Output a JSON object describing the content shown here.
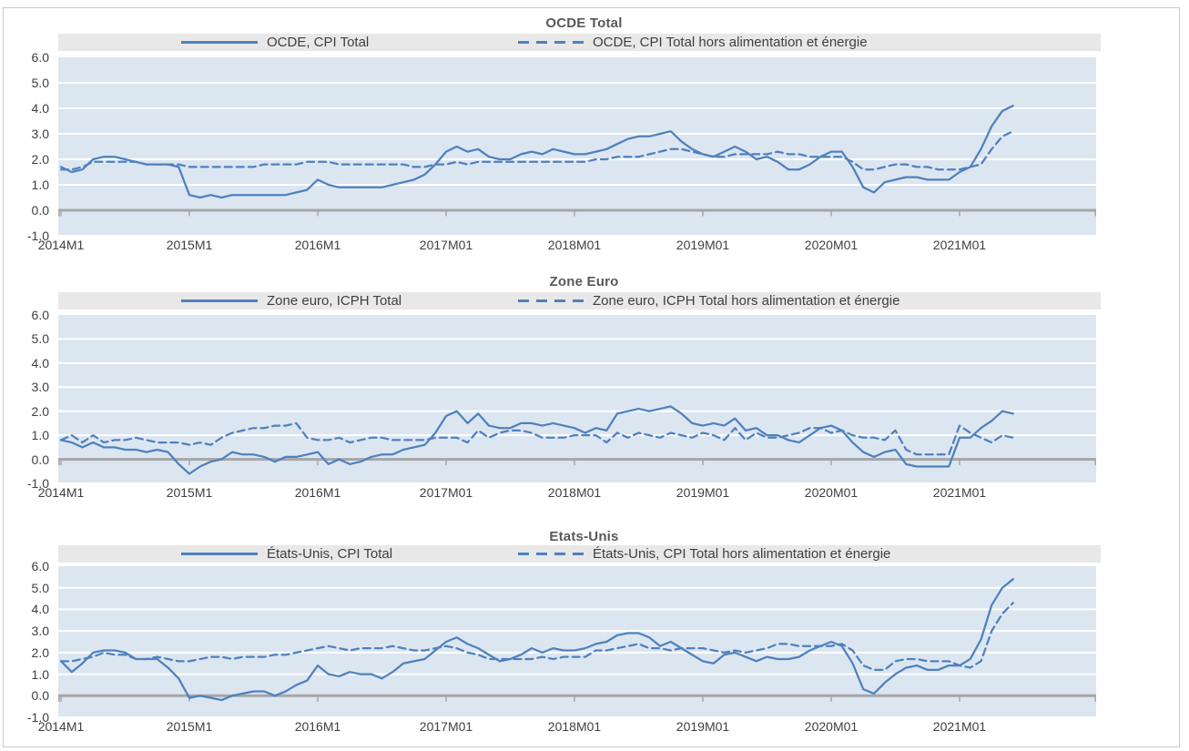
{
  "colors": {
    "line": "#4f81bd",
    "plot_background": "#dce6f1",
    "gridline": "#ffffff",
    "zero_axis": "#a6a6a6",
    "legend_background": "#e8e8e8",
    "title_text": "#595959",
    "tick_text": "#404040",
    "frame_border": "#c6cbd0"
  },
  "axis": {
    "ylim": [
      -1,
      6
    ],
    "y_tick_values": [
      6,
      5,
      4,
      3,
      2,
      1,
      0,
      -1
    ],
    "y_tick_labels": [
      "6.0",
      "5.0",
      "4.0",
      "3.0",
      "2.0",
      "1.0",
      "0.0",
      "-1.0"
    ],
    "x_tick_labels": [
      "2014M1",
      "2015M1",
      "2016M1",
      "2017M01",
      "2018M01",
      "2019M01",
      "2020M01",
      "2021M01"
    ],
    "x_tick_months": [
      0,
      12,
      24,
      36,
      48,
      60,
      72,
      84
    ],
    "grid": "horizontal",
    "legend_position": "top"
  },
  "chart_data": [
    {
      "type": "line",
      "title": "OCDE Total",
      "frequency": "monthly",
      "x_start": "2014M1",
      "x_end": "2021M6",
      "ylim": [
        -1,
        6
      ],
      "series": [
        {
          "name": "OCDE, CPI Total",
          "line_style": "solid",
          "color": "#4f81bd",
          "values": [
            1.7,
            1.5,
            1.6,
            2.0,
            2.1,
            2.1,
            2.0,
            1.9,
            1.8,
            1.8,
            1.8,
            1.7,
            0.6,
            0.5,
            0.6,
            0.5,
            0.6,
            0.6,
            0.6,
            0.6,
            0.6,
            0.6,
            0.7,
            0.8,
            1.2,
            1.0,
            0.9,
            0.9,
            0.9,
            0.9,
            0.9,
            1.0,
            1.1,
            1.2,
            1.4,
            1.8,
            2.3,
            2.5,
            2.3,
            2.4,
            2.1,
            2.0,
            2.0,
            2.2,
            2.3,
            2.2,
            2.4,
            2.3,
            2.2,
            2.2,
            2.3,
            2.4,
            2.6,
            2.8,
            2.9,
            2.9,
            3.0,
            3.1,
            2.7,
            2.4,
            2.2,
            2.1,
            2.3,
            2.5,
            2.3,
            2.0,
            2.1,
            1.9,
            1.6,
            1.6,
            1.8,
            2.1,
            2.3,
            2.3,
            1.7,
            0.9,
            0.7,
            1.1,
            1.2,
            1.3,
            1.3,
            1.2,
            1.2,
            1.2,
            1.5,
            1.7,
            2.4,
            3.3,
            3.9,
            4.1
          ]
        },
        {
          "name": "OCDE, CPI Total hors alimentation et énergie",
          "line_style": "dashed",
          "color": "#4f81bd",
          "values": [
            1.6,
            1.6,
            1.7,
            1.9,
            1.9,
            1.9,
            1.9,
            1.9,
            1.8,
            1.8,
            1.8,
            1.8,
            1.7,
            1.7,
            1.7,
            1.7,
            1.7,
            1.7,
            1.7,
            1.8,
            1.8,
            1.8,
            1.8,
            1.9,
            1.9,
            1.9,
            1.8,
            1.8,
            1.8,
            1.8,
            1.8,
            1.8,
            1.8,
            1.7,
            1.7,
            1.8,
            1.8,
            1.9,
            1.8,
            1.9,
            1.9,
            1.9,
            1.9,
            1.9,
            1.9,
            1.9,
            1.9,
            1.9,
            1.9,
            1.9,
            2.0,
            2.0,
            2.1,
            2.1,
            2.1,
            2.2,
            2.3,
            2.4,
            2.4,
            2.3,
            2.2,
            2.1,
            2.1,
            2.2,
            2.2,
            2.2,
            2.2,
            2.3,
            2.2,
            2.2,
            2.1,
            2.1,
            2.1,
            2.1,
            1.9,
            1.6,
            1.6,
            1.7,
            1.8,
            1.8,
            1.7,
            1.7,
            1.6,
            1.6,
            1.6,
            1.7,
            1.8,
            2.4,
            2.9,
            3.1
          ]
        }
      ]
    },
    {
      "type": "line",
      "title": "Zone Euro",
      "frequency": "monthly",
      "x_start": "2014M1",
      "x_end": "2021M6",
      "ylim": [
        -1,
        6
      ],
      "series": [
        {
          "name": "Zone euro, ICPH Total",
          "line_style": "solid",
          "color": "#4f81bd",
          "values": [
            0.8,
            0.7,
            0.5,
            0.7,
            0.5,
            0.5,
            0.4,
            0.4,
            0.3,
            0.4,
            0.3,
            -0.2,
            -0.6,
            -0.3,
            -0.1,
            0.0,
            0.3,
            0.2,
            0.2,
            0.1,
            -0.1,
            0.1,
            0.1,
            0.2,
            0.3,
            -0.2,
            0.0,
            -0.2,
            -0.1,
            0.1,
            0.2,
            0.2,
            0.4,
            0.5,
            0.6,
            1.1,
            1.8,
            2.0,
            1.5,
            1.9,
            1.4,
            1.3,
            1.3,
            1.5,
            1.5,
            1.4,
            1.5,
            1.4,
            1.3,
            1.1,
            1.3,
            1.2,
            1.9,
            2.0,
            2.1,
            2.0,
            2.1,
            2.2,
            1.9,
            1.5,
            1.4,
            1.5,
            1.4,
            1.7,
            1.2,
            1.3,
            1.0,
            1.0,
            0.8,
            0.7,
            1.0,
            1.3,
            1.4,
            1.2,
            0.7,
            0.3,
            0.1,
            0.3,
            0.4,
            -0.2,
            -0.3,
            -0.3,
            -0.3,
            -0.3,
            0.9,
            0.9,
            1.3,
            1.6,
            2.0,
            1.9
          ]
        },
        {
          "name": "Zone euro, ICPH Total hors alimentation et énergie",
          "line_style": "dashed",
          "color": "#4f81bd",
          "values": [
            0.8,
            1.0,
            0.7,
            1.0,
            0.7,
            0.8,
            0.8,
            0.9,
            0.8,
            0.7,
            0.7,
            0.7,
            0.6,
            0.7,
            0.6,
            0.9,
            1.1,
            1.2,
            1.3,
            1.3,
            1.4,
            1.4,
            1.5,
            0.9,
            0.8,
            0.8,
            0.9,
            0.7,
            0.8,
            0.9,
            0.9,
            0.8,
            0.8,
            0.8,
            0.8,
            0.9,
            0.9,
            0.9,
            0.7,
            1.2,
            0.9,
            1.1,
            1.2,
            1.2,
            1.1,
            0.9,
            0.9,
            0.9,
            1.0,
            1.0,
            1.0,
            0.7,
            1.1,
            0.9,
            1.1,
            1.0,
            0.9,
            1.1,
            1.0,
            0.9,
            1.1,
            1.0,
            0.8,
            1.3,
            0.8,
            1.1,
            0.9,
            0.9,
            1.0,
            1.1,
            1.3,
            1.3,
            1.1,
            1.2,
            1.0,
            0.9,
            0.9,
            0.8,
            1.2,
            0.4,
            0.2,
            0.2,
            0.2,
            0.2,
            1.4,
            1.1,
            0.9,
            0.7,
            1.0,
            0.9
          ]
        }
      ]
    },
    {
      "type": "line",
      "title": "Etats-Unis",
      "frequency": "monthly",
      "x_start": "2014M1",
      "x_end": "2021M6",
      "ylim": [
        -1,
        6
      ],
      "series": [
        {
          "name": "États-Unis, CPI Total",
          "line_style": "solid",
          "color": "#4f81bd",
          "values": [
            1.6,
            1.1,
            1.5,
            2.0,
            2.1,
            2.1,
            2.0,
            1.7,
            1.7,
            1.7,
            1.3,
            0.8,
            -0.1,
            0.0,
            -0.1,
            -0.2,
            0.0,
            0.1,
            0.2,
            0.2,
            0.0,
            0.2,
            0.5,
            0.7,
            1.4,
            1.0,
            0.9,
            1.1,
            1.0,
            1.0,
            0.8,
            1.1,
            1.5,
            1.6,
            1.7,
            2.1,
            2.5,
            2.7,
            2.4,
            2.2,
            1.9,
            1.6,
            1.7,
            1.9,
            2.2,
            2.0,
            2.2,
            2.1,
            2.1,
            2.2,
            2.4,
            2.5,
            2.8,
            2.9,
            2.9,
            2.7,
            2.3,
            2.5,
            2.2,
            1.9,
            1.6,
            1.5,
            1.9,
            2.0,
            1.8,
            1.6,
            1.8,
            1.7,
            1.7,
            1.8,
            2.1,
            2.3,
            2.5,
            2.3,
            1.5,
            0.3,
            0.1,
            0.6,
            1.0,
            1.3,
            1.4,
            1.2,
            1.2,
            1.4,
            1.4,
            1.7,
            2.6,
            4.2,
            5.0,
            5.4
          ]
        },
        {
          "name": "États-Unis, CPI Total hors alimentation et énergie",
          "line_style": "dashed",
          "color": "#4f81bd",
          "values": [
            1.6,
            1.6,
            1.7,
            1.8,
            2.0,
            1.9,
            1.9,
            1.7,
            1.7,
            1.8,
            1.7,
            1.6,
            1.6,
            1.7,
            1.8,
            1.8,
            1.7,
            1.8,
            1.8,
            1.8,
            1.9,
            1.9,
            2.0,
            2.1,
            2.2,
            2.3,
            2.2,
            2.1,
            2.2,
            2.2,
            2.2,
            2.3,
            2.2,
            2.1,
            2.1,
            2.2,
            2.3,
            2.2,
            2.0,
            1.9,
            1.7,
            1.7,
            1.7,
            1.7,
            1.7,
            1.8,
            1.7,
            1.8,
            1.8,
            1.8,
            2.1,
            2.1,
            2.2,
            2.3,
            2.4,
            2.2,
            2.2,
            2.1,
            2.2,
            2.2,
            2.2,
            2.1,
            2.0,
            2.1,
            2.0,
            2.1,
            2.2,
            2.4,
            2.4,
            2.3,
            2.3,
            2.3,
            2.3,
            2.4,
            2.1,
            1.4,
            1.2,
            1.2,
            1.6,
            1.7,
            1.7,
            1.6,
            1.6,
            1.6,
            1.4,
            1.3,
            1.6,
            3.0,
            3.8,
            4.3
          ]
        }
      ]
    }
  ]
}
